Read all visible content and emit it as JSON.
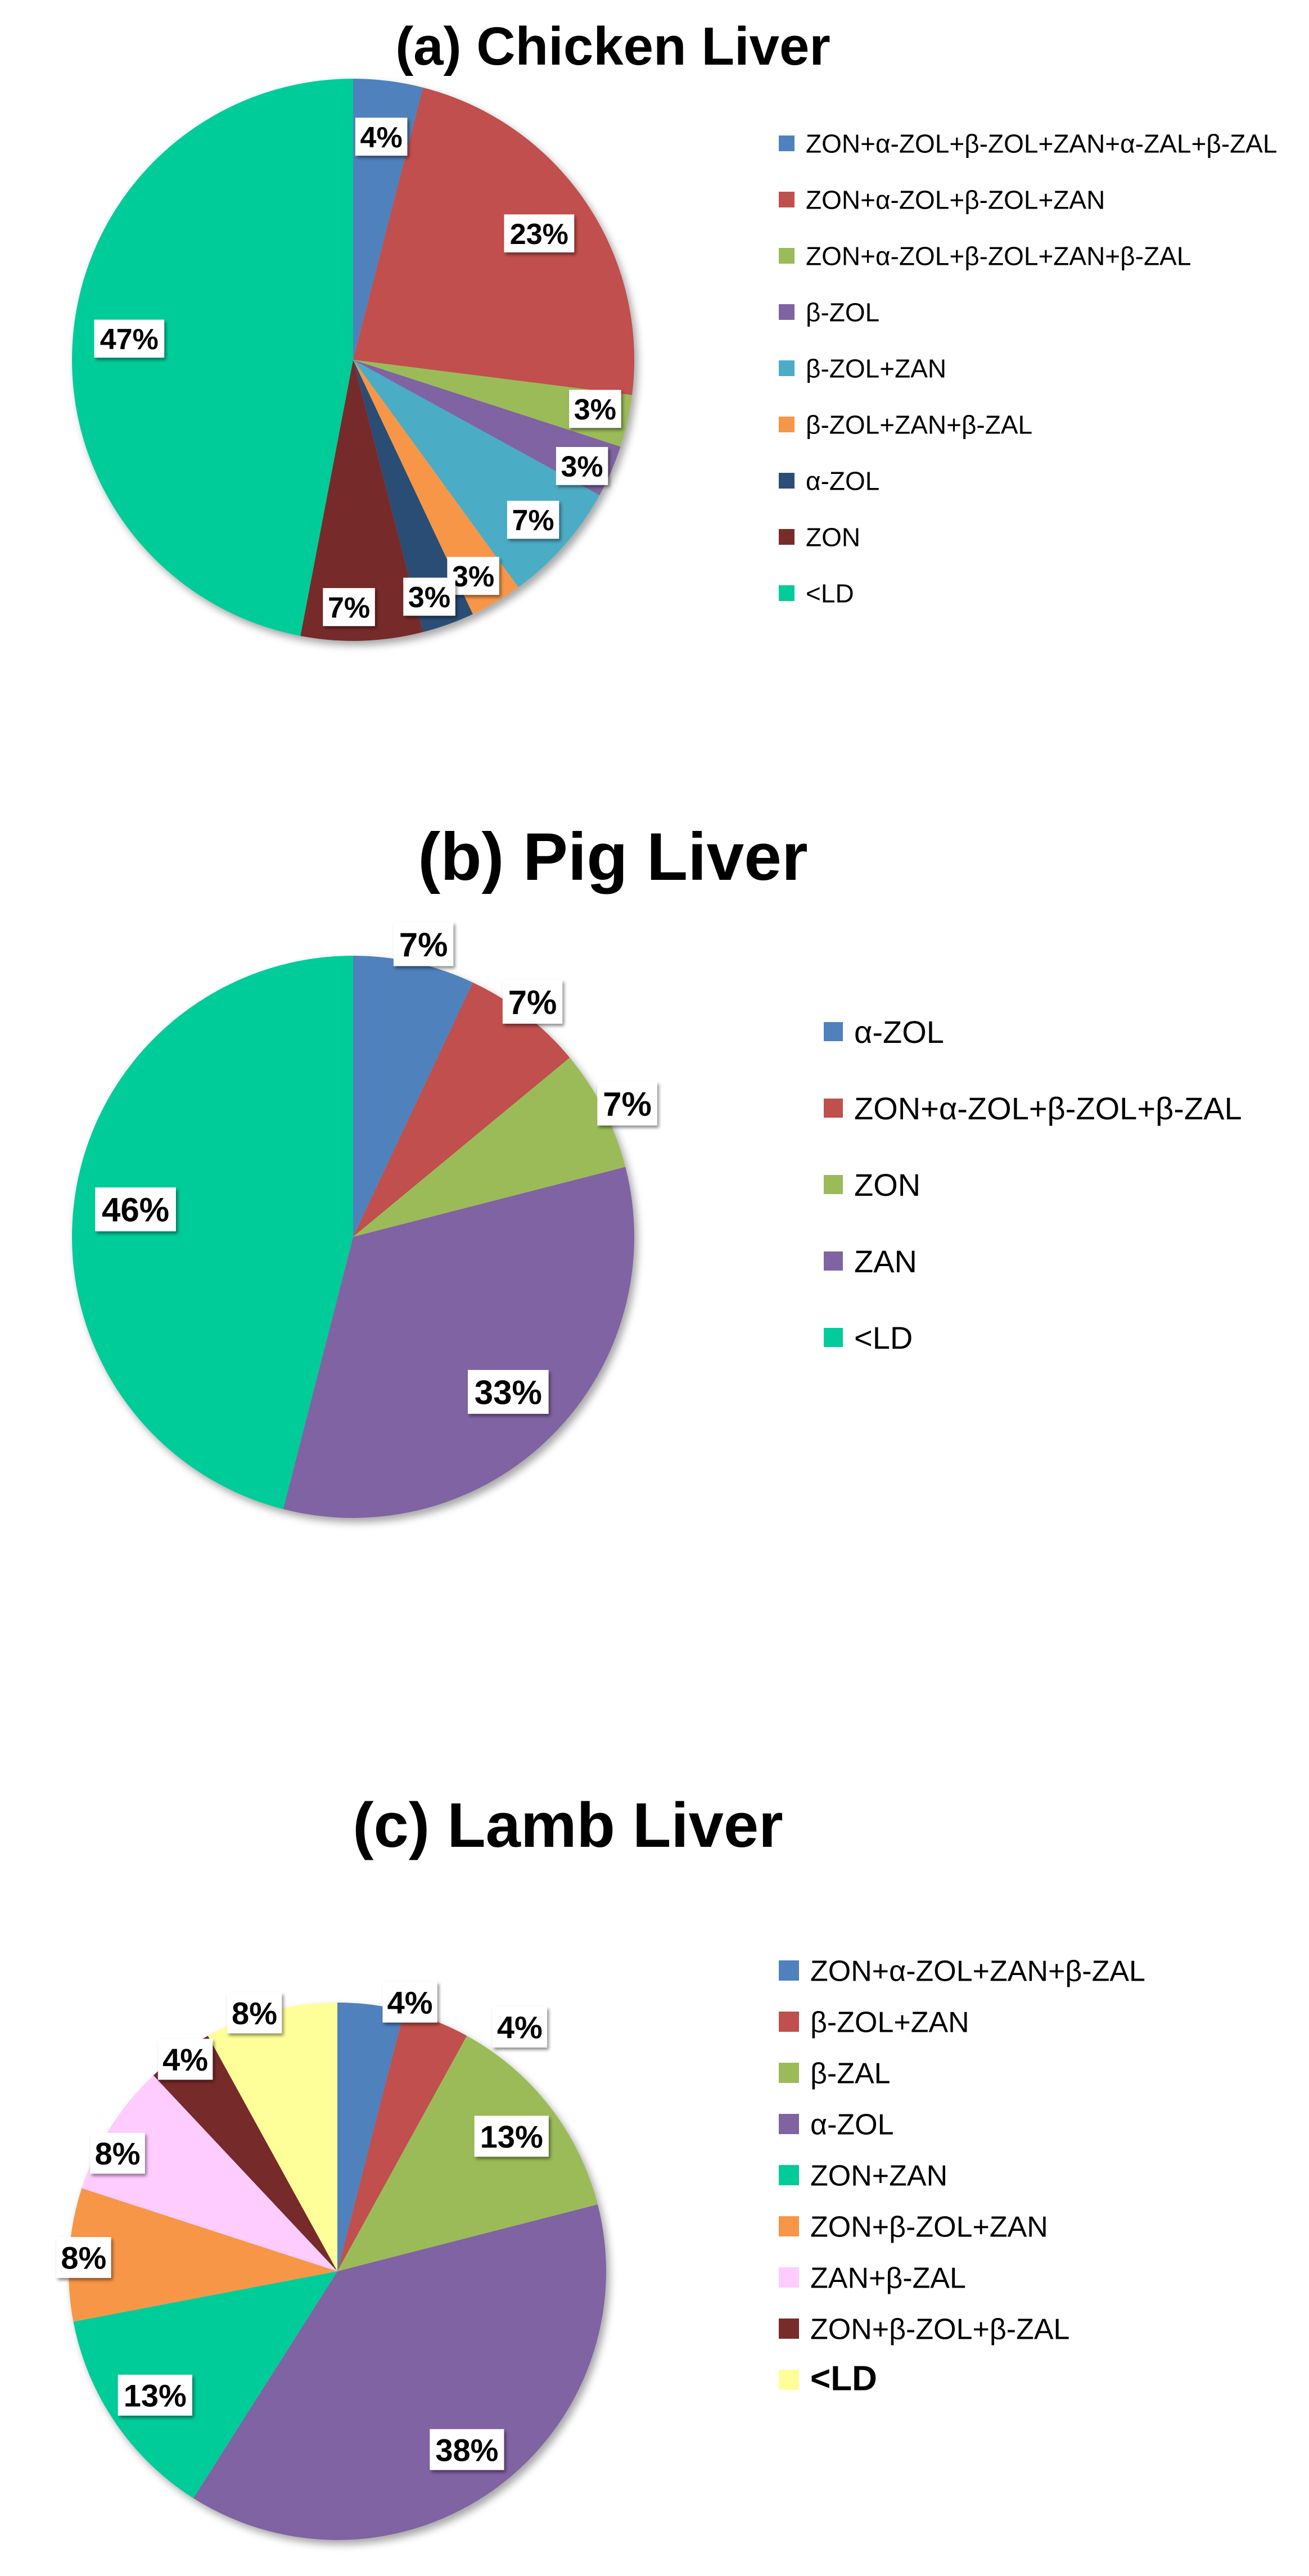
{
  "colors": {
    "blue": "#4F81BD",
    "red": "#C0504D",
    "green": "#9BBB59",
    "purple": "#8064A2",
    "aqua": "#4BACC6",
    "orange": "#F79646",
    "navy": "#2C4D75",
    "maroon": "#772C2A",
    "teal": "#00CC99",
    "pink": "#FFCCFF",
    "yellow": "#FFFF99"
  },
  "chart_data": [
    {
      "type": "pie",
      "title": "(a) Chicken Liver",
      "slices": [
        {
          "name": "ZON+α-ZOL+β-ZOL+ZAN+α-ZAL+β-ZAL",
          "value": 4,
          "label": "4%",
          "color": "#4F81BD"
        },
        {
          "name": "ZON+α-ZOL+β-ZOL+ZAN",
          "value": 23,
          "label": "23%",
          "color": "#C0504D"
        },
        {
          "name": "ZON+α-ZOL+β-ZOL+ZAN+β-ZAL",
          "value": 3,
          "label": "3%",
          "color": "#9BBB59"
        },
        {
          "name": "β-ZOL",
          "value": 3,
          "label": "3%",
          "color": "#8064A2"
        },
        {
          "name": "β-ZOL+ZAN",
          "value": 7,
          "label": "7%",
          "color": "#4BACC6"
        },
        {
          "name": "β-ZOL+ZAN+β-ZAL",
          "value": 3,
          "label": "3%",
          "color": "#F79646"
        },
        {
          "name": "α-ZOL",
          "value": 3,
          "label": "3%",
          "color": "#2C4D75"
        },
        {
          "name": "ZON",
          "value": 7,
          "label": "7%",
          "color": "#772C2A"
        },
        {
          "name": "<LD",
          "value": 47,
          "label": "47%",
          "color": "#00CC99"
        }
      ],
      "legend_placement": "right"
    },
    {
      "type": "pie",
      "title": "(b) Pig Liver",
      "slices": [
        {
          "name": "α-ZOL",
          "value": 7,
          "label": "7%",
          "color": "#4F81BD"
        },
        {
          "name": "ZON+α-ZOL+β-ZOL+β-ZAL",
          "value": 7,
          "label": "7%",
          "color": "#C0504D"
        },
        {
          "name": "ZON",
          "value": 7,
          "label": "7%",
          "color": "#9BBB59"
        },
        {
          "name": "ZAN",
          "value": 33,
          "label": "33%",
          "color": "#8064A2"
        },
        {
          "name": "<LD",
          "value": 46,
          "label": "46%",
          "color": "#00CC99"
        }
      ],
      "legend_placement": "right"
    },
    {
      "type": "pie",
      "title": "(c) Lamb Liver",
      "slices": [
        {
          "name": "ZON+α-ZOL+ZAN+β-ZAL",
          "value": 4,
          "label": "4%",
          "color": "#4F81BD"
        },
        {
          "name": "β-ZOL+ZAN",
          "value": 4,
          "label": "4%",
          "color": "#C0504D"
        },
        {
          "name": "β-ZAL",
          "value": 13,
          "label": "13%",
          "color": "#9BBB59"
        },
        {
          "name": "α-ZOL",
          "value": 38,
          "label": "38%",
          "color": "#8064A2"
        },
        {
          "name": "ZON+ZAN",
          "value": 13,
          "label": "13%",
          "color": "#00CC99"
        },
        {
          "name": "ZON+β-ZOL+ZAN",
          "value": 8,
          "label": "8%",
          "color": "#F79646"
        },
        {
          "name": "ZAN+β-ZAL",
          "value": 8,
          "label": "8%",
          "color": "#FFCCFF"
        },
        {
          "name": "ZON+β-ZOL+β-ZAL",
          "value": 4,
          "label": "4%",
          "color": "#772C2A"
        },
        {
          "name": "<LD",
          "value": 8,
          "label": "8%",
          "color": "#FFFF99"
        }
      ],
      "legend_placement": "right"
    }
  ]
}
